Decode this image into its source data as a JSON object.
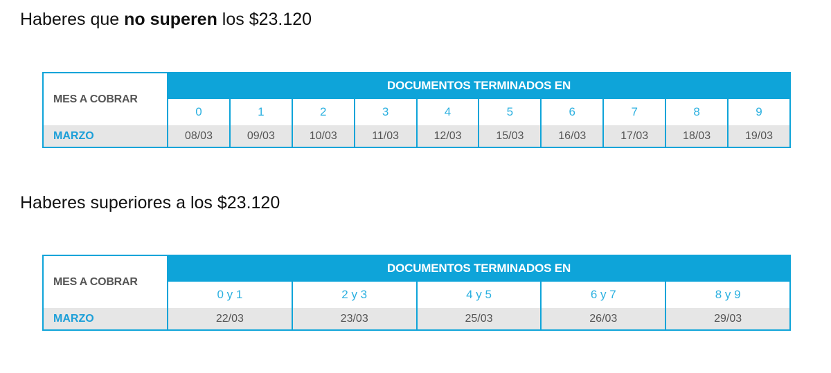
{
  "section1": {
    "heading_pre": "Haberes que ",
    "heading_bold": "no superen",
    "heading_post": " los $23.120",
    "table": {
      "row_label": "MES A COBRAR",
      "group_header": "DOCUMENTOS TERMINADOS EN",
      "columns": [
        "0",
        "1",
        "2",
        "3",
        "4",
        "5",
        "6",
        "7",
        "8",
        "9"
      ],
      "month": "MARZO",
      "dates": [
        "08/03",
        "09/03",
        "10/03",
        "11/03",
        "12/03",
        "15/03",
        "16/03",
        "17/03",
        "18/03",
        "19/03"
      ]
    }
  },
  "section2": {
    "heading": "Haberes superiores a los $23.120",
    "table": {
      "row_label": "MES A COBRAR",
      "group_header": "DOCUMENTOS TERMINADOS EN",
      "columns": [
        "0 y 1",
        "2 y 3",
        "4 y 5",
        "6 y 7",
        "8 y 9"
      ],
      "month": "MARZO",
      "dates": [
        "22/03",
        "23/03",
        "25/03",
        "26/03",
        "29/03"
      ]
    }
  },
  "colors": {
    "accent": "#0ea4d9",
    "digit_text": "#2bb0e0",
    "month_text": "#1c9fd8",
    "row_background": "#e6e6e6",
    "label_text": "#555555"
  }
}
